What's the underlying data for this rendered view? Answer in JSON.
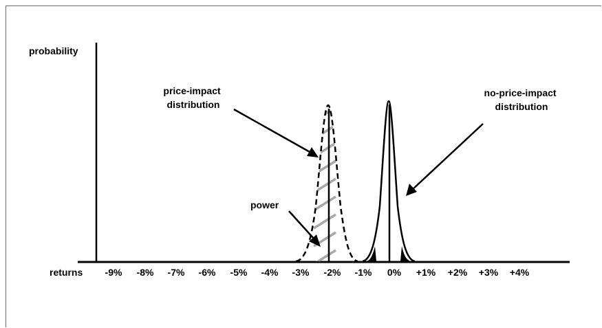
{
  "figure": {
    "y_axis_label": "probability",
    "x_axis_label": "returns",
    "labels": {
      "price_impact": [
        "price-impact",
        "distribution"
      ],
      "no_price_impact": [
        "no-price-impact",
        "distribution"
      ],
      "power": "power"
    },
    "tick_labels": [
      "-9%",
      "-8%",
      "-7%",
      "-6%",
      "-5%",
      "-4%",
      "-3%",
      "-2%",
      "-1%",
      "0%",
      "+1%",
      "+2%",
      "+3%",
      "+4%"
    ],
    "colors": {
      "line": "#000000",
      "hatch": "#a8a8a8",
      "frame": "#6b6b6b"
    }
  }
}
